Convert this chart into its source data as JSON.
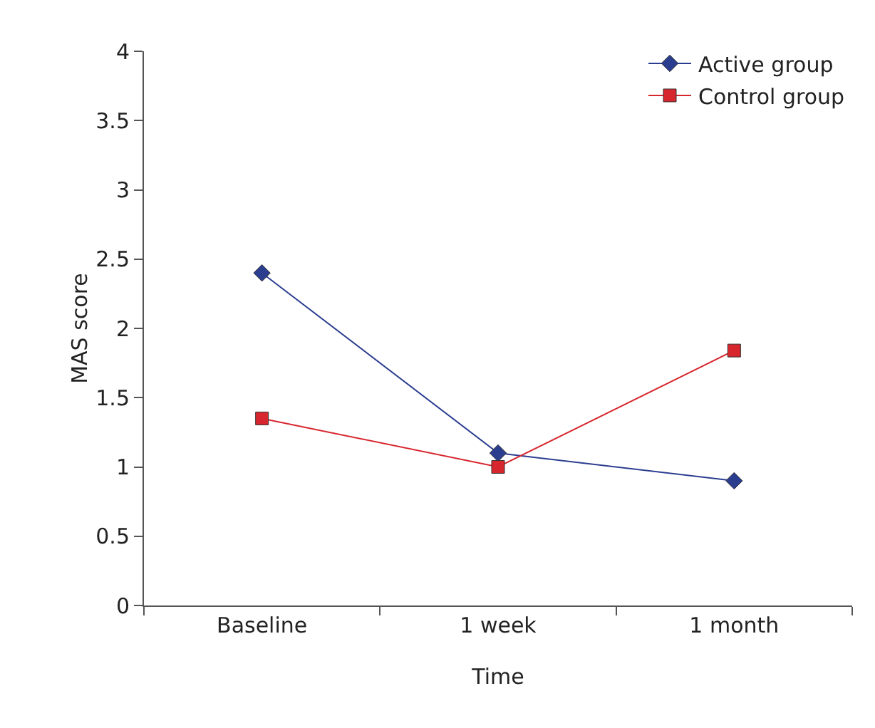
{
  "chart_data": {
    "type": "line",
    "xlabel": "Time",
    "ylabel": "MAS score",
    "categories": [
      "Baseline",
      "1 week",
      "1 month"
    ],
    "series": [
      {
        "name": "Active group",
        "color": "#2b3d8f",
        "values": [
          2.4,
          1.1,
          0.9
        ],
        "marker": "diamond"
      },
      {
        "name": "Control group",
        "color": "#d7262e",
        "values": [
          1.35,
          1.0,
          1.84
        ],
        "marker": "square"
      }
    ],
    "ylim": [
      0,
      4
    ],
    "yticks": [
      0,
      0.5,
      1,
      1.5,
      2,
      2.5,
      3,
      3.5,
      4
    ],
    "grid": false,
    "legend": "top right",
    "line_style": "solid"
  }
}
